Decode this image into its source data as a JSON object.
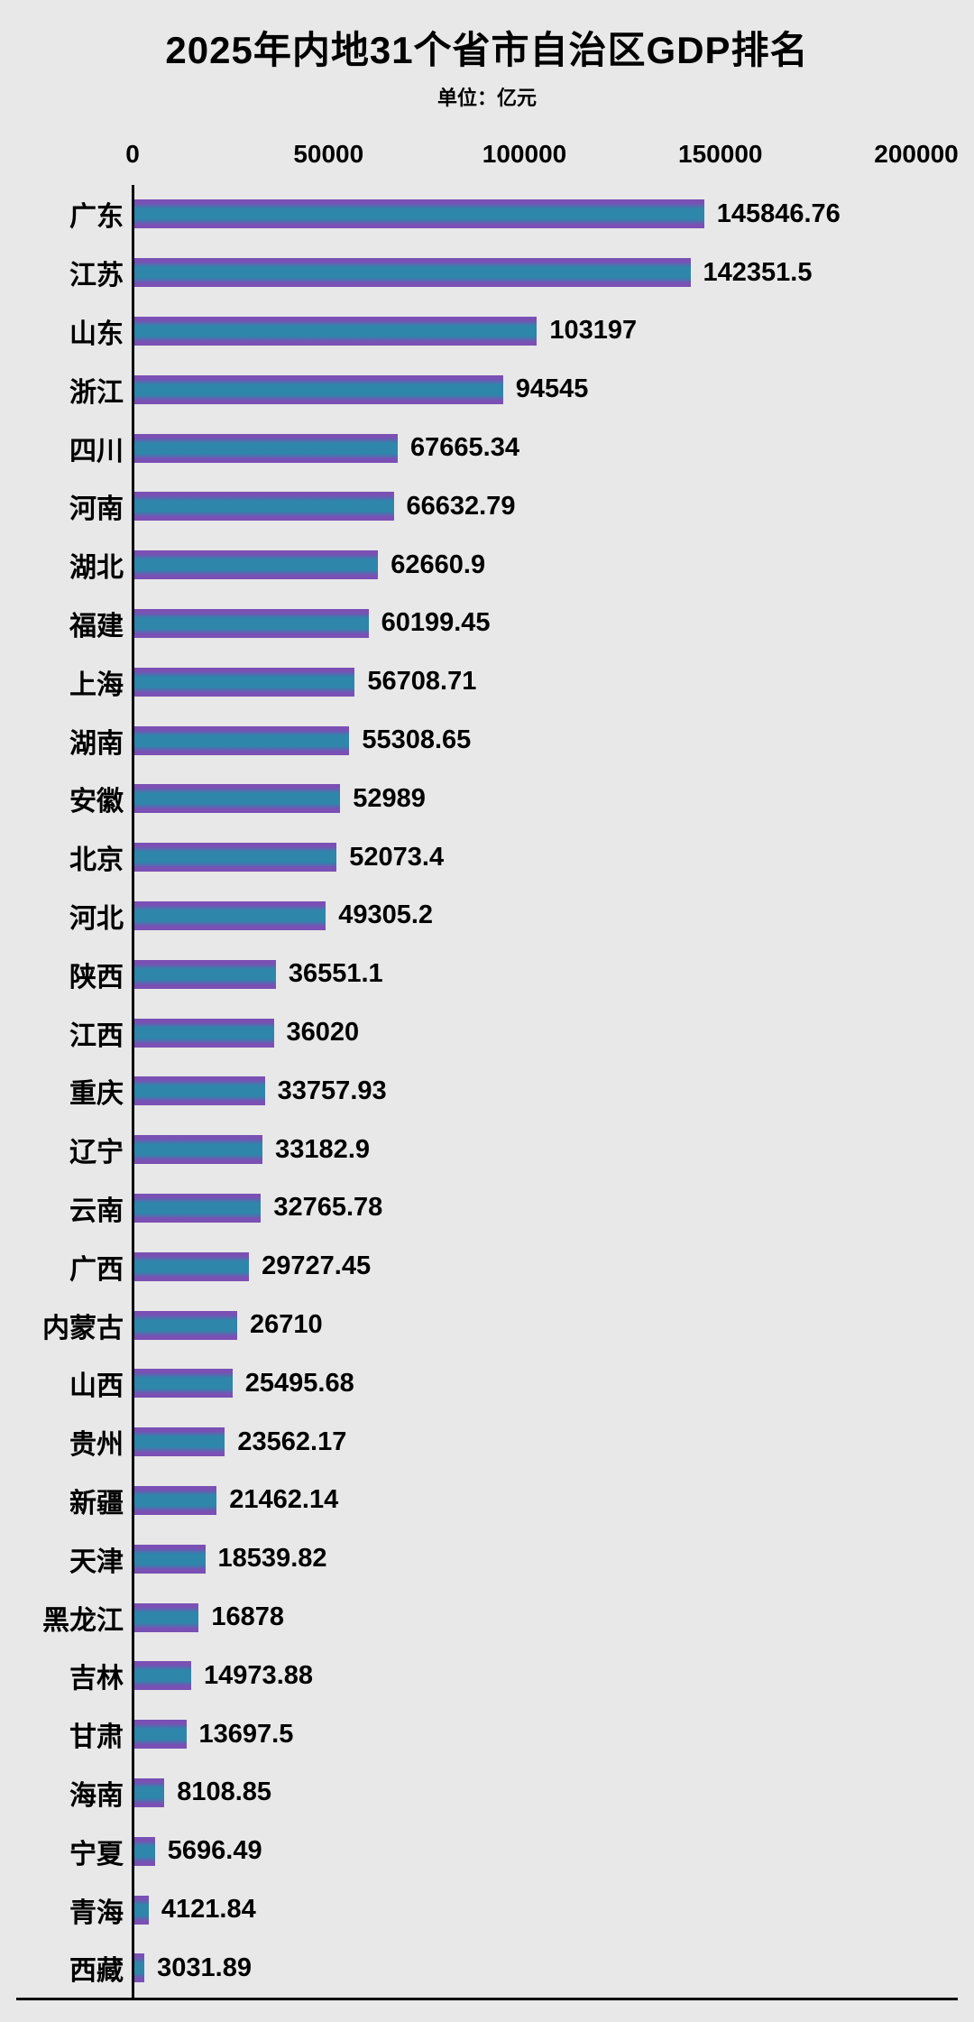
{
  "page": {
    "background": "#e8e8e8"
  },
  "chart_data": {
    "type": "bar",
    "orientation": "horizontal",
    "title": "2025年内地31个省市自治区GDP排名",
    "subtitle": "单位：亿元",
    "categories": [
      "广东",
      "江苏",
      "山东",
      "浙江",
      "四川",
      "河南",
      "湖北",
      "福建",
      "上海",
      "湖南",
      "安徽",
      "北京",
      "河北",
      "陕西",
      "江西",
      "重庆",
      "辽宁",
      "云南",
      "广西",
      "内蒙古",
      "山西",
      "贵州",
      "新疆",
      "天津",
      "黑龙江",
      "吉林",
      "甘肃",
      "海南",
      "宁夏",
      "青海",
      "西藏"
    ],
    "values": [
      145846.76,
      142351.5,
      103197,
      94545,
      67665.34,
      66632.79,
      62660.9,
      60199.45,
      56708.71,
      55308.65,
      52989,
      52073.4,
      49305.2,
      36551.1,
      36020,
      33757.93,
      33182.9,
      32765.78,
      29727.45,
      26710,
      25495.68,
      23562.17,
      21462.14,
      18539.82,
      16878,
      14973.88,
      13697.5,
      8108.85,
      5696.49,
      4121.84,
      3031.89
    ],
    "xlim": [
      0,
      200000
    ],
    "x_ticks": [
      0,
      50000,
      100000,
      150000,
      200000
    ],
    "bar_colors": {
      "body": "#2e86ab",
      "edge": "#7a50b4"
    },
    "text_color": "#000000",
    "grid": false,
    "legend": false
  }
}
